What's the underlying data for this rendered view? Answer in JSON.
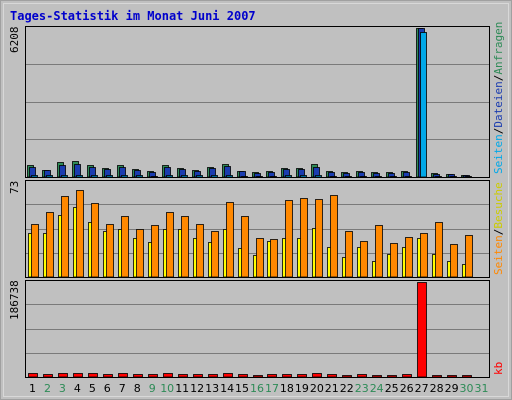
{
  "chart_data": {
    "type": "bar",
    "title": "Tages-Statistik im Monat Juni 2007",
    "categories": [
      "1",
      "2",
      "3",
      "4",
      "5",
      "6",
      "7",
      "8",
      "9",
      "10",
      "11",
      "12",
      "13",
      "14",
      "15",
      "16",
      "17",
      "18",
      "19",
      "20",
      "21",
      "22",
      "23",
      "24",
      "25",
      "26",
      "27",
      "28",
      "29",
      "30",
      "31"
    ],
    "weekend_days": [
      "2",
      "3",
      "9",
      "10",
      "16",
      "17",
      "23",
      "24",
      "30",
      "31"
    ],
    "colors": {
      "title": "#0000cc",
      "background": "#c0c0c0",
      "panel_border": "#000000",
      "frame": "#a0a0a0",
      "gridline": "#7a7a7a",
      "tick_weekday": "#000000",
      "tick_weekend": "#2e8b57",
      "anfragen": "#2e8b57",
      "dateien": "#1a3cb0",
      "seiten_top": "#00a8e8",
      "besuche": "#ffff00",
      "seiten_mid": "#ff8800",
      "kb": "#ff0000"
    },
    "panels": [
      {
        "id": "top",
        "ymax_label": "6208",
        "ymax": 6208,
        "legend": [
          "Anfragen",
          "Dateien",
          "Seiten"
        ],
        "series": [
          {
            "name": "Anfragen",
            "values": [
              520,
              300,
              610,
              660,
              500,
              380,
              500,
              330,
              250,
              500,
              380,
              300,
              420,
              560,
              260,
              190,
              250,
              380,
              380,
              560,
              250,
              190,
              250,
              200,
              200,
              250,
              6208,
              160,
              130,
              100,
              0
            ]
          },
          {
            "name": "Dateien",
            "values": [
              420,
              280,
              500,
              550,
              420,
              330,
              420,
              290,
              210,
              420,
              330,
              260,
              360,
              470,
              230,
              165,
              210,
              330,
              330,
              420,
              210,
              165,
              210,
              170,
              170,
              210,
              6208,
              140,
              110,
              90,
              0
            ]
          },
          {
            "name": "Seiten",
            "values": [
              80,
              70,
              90,
              95,
              80,
              75,
              85,
              70,
              60,
              80,
              75,
              70,
              75,
              85,
              60,
              50,
              60,
              70,
              70,
              80,
              55,
              50,
              60,
              50,
              50,
              60,
              6040,
              45,
              40,
              35,
              0
            ]
          }
        ]
      },
      {
        "id": "mid",
        "ymax_label": "73",
        "ymax": 73,
        "legend": [
          "Besuche",
          "Seiten"
        ],
        "series": [
          {
            "name": "Besuche",
            "values": [
              34,
              34,
              48,
              54,
              42,
              35,
              37,
              30,
              27,
              37,
              37,
              30,
              27,
              37,
              22,
              17,
              28,
              30,
              30,
              38,
              23,
              15,
              23,
              12,
              18,
              23,
              30,
              18,
              12,
              10,
              0
            ]
          },
          {
            "name": "Seiten",
            "values": [
              41,
              50,
              62,
              67,
              57,
              41,
              47,
              37,
              40,
              50,
              47,
              41,
              35,
              58,
              47,
              30,
              29,
              59,
              61,
              60,
              63,
              35,
              28,
              40,
              26,
              31,
              34,
              42,
              25,
              32,
              0
            ]
          }
        ]
      },
      {
        "id": "bottom",
        "ymax_label": "186738",
        "ymax": 186738,
        "legend": [
          "kb"
        ],
        "series": [
          {
            "name": "kb",
            "values": [
              7000,
              6500,
              8000,
              8500,
              7500,
              6800,
              7200,
              6500,
              5800,
              7300,
              6700,
              6100,
              6800,
              8000,
              5400,
              4800,
              5300,
              6400,
              6300,
              7700,
              5200,
              4700,
              5100,
              4400,
              4500,
              5200,
              186738,
              3900,
              3400,
              3000,
              0
            ]
          }
        ]
      }
    ]
  }
}
